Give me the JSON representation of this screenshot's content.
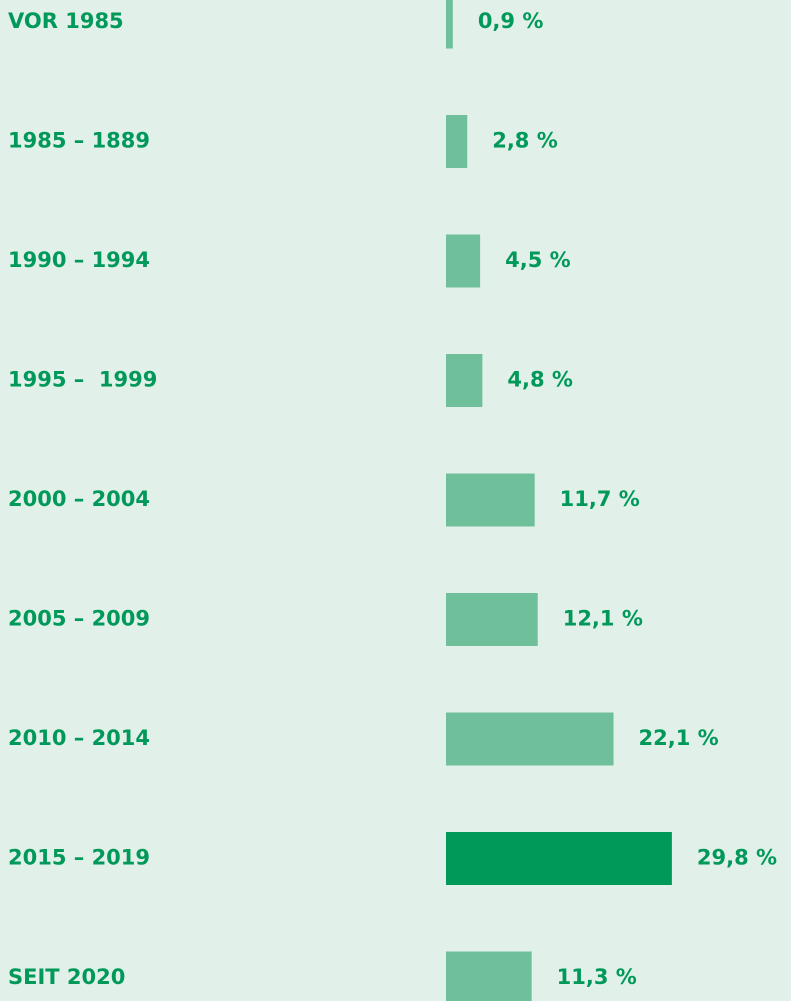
{
  "chart_data": {
    "type": "hbar",
    "categories": [
      "VOR 1985",
      "1985 – 1889",
      "1990 – 1994",
      "1995 –  1999",
      "2000 – 2004",
      "2005 – 2009",
      "2010 – 2014",
      "2015 – 2019",
      "SEIT 2020"
    ],
    "values": [
      0.9,
      2.8,
      4.5,
      4.8,
      11.7,
      12.1,
      22.1,
      29.8,
      11.3
    ],
    "value_labels": [
      "0,9 %",
      "2,8 %",
      "4,5 %",
      "4,8 %",
      "11,7 %",
      "12,1 %",
      "22,1 %",
      "29,8 %",
      "11,3 %"
    ],
    "colors": [
      "#6fbf9b",
      "#6fbf9b",
      "#6fbf9b",
      "#6fbf9b",
      "#6fbf9b",
      "#6fbf9b",
      "#6fbf9b",
      "#00995a",
      "#6fbf9b"
    ]
  }
}
